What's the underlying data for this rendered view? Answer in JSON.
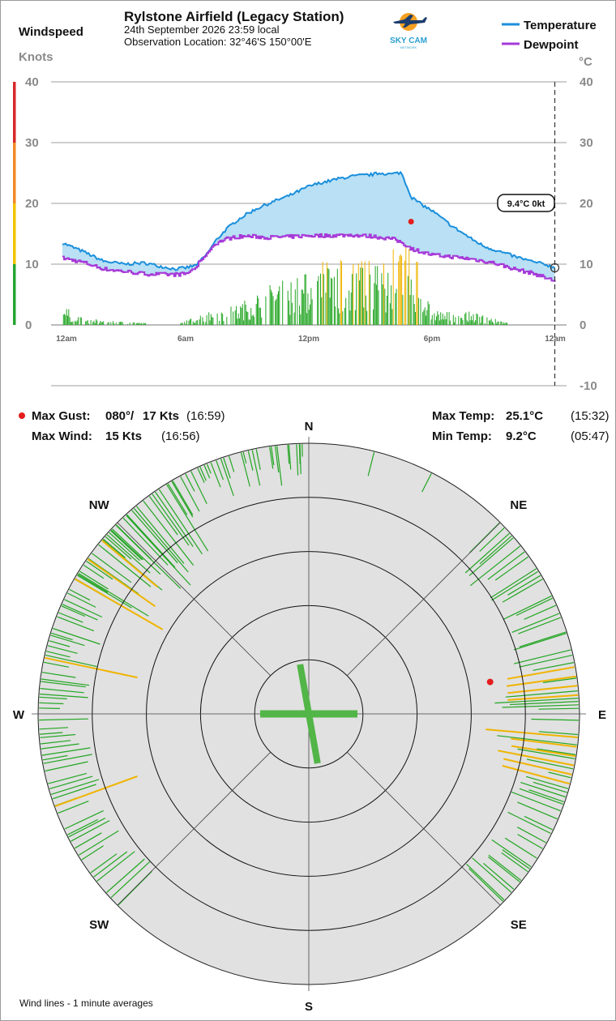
{
  "header": {
    "station_name": "Rylstone Airfield (Legacy Station)",
    "date_line": "24th September 2026  23:59 local",
    "location_line": "Observation Location:  32°46'S 150°00'E",
    "logo_text": "SKY CAM",
    "logo_subtext": "NETWORK"
  },
  "left_axis": {
    "title": "Windspeed",
    "unit": "Knots"
  },
  "right_axis": {
    "unit": "°C"
  },
  "legend": {
    "temperature": "Temperature",
    "dewpoint": "Dewpoint"
  },
  "colors": {
    "temperature": "#1a8fdc",
    "dewpoint": "#a63ad8",
    "fill": "#b9e0f4",
    "wind_green": "#22a522",
    "wind_yellow": "#f0b400",
    "gust_marker": "#e41d1d",
    "scale_red": "#d8282a",
    "scale_orange": "#f08a24",
    "scale_yellow": "#f2c400",
    "scale_green": "#27a534",
    "rose_bg": "#e1e1e1"
  },
  "current_badge": "9.4°C  0kt",
  "chart_data": {
    "type": "line",
    "x_ticks": [
      "12am",
      "6am",
      "12pm",
      "6pm",
      "12am"
    ],
    "x_range_hours": [
      0,
      24
    ],
    "windspeed_axis": {
      "ticks": [
        "0",
        "10",
        "20",
        "30",
        "40"
      ],
      "ylim": [
        0,
        40
      ]
    },
    "temperature_axis": {
      "ticks": [
        "-10",
        "0",
        "10",
        "20",
        "30",
        "40"
      ],
      "ylim": [
        -10,
        40
      ]
    },
    "series": [
      {
        "name": "Temperature",
        "hours": [
          0,
          1,
          2,
          3,
          4,
          5,
          5.5,
          6,
          6.5,
          7,
          7.5,
          8,
          8.5,
          9,
          9.5,
          10,
          10.5,
          11,
          11.5,
          12,
          12.5,
          13,
          13.5,
          14,
          14.5,
          15,
          15.5,
          16,
          16.5,
          17,
          17.5,
          18,
          19,
          20,
          20.5,
          21,
          22,
          22.5,
          23,
          23.5,
          23.98
        ],
        "values": [
          13.5,
          12.1,
          10.5,
          10,
          10.2,
          9.5,
          9.2,
          9.4,
          9.8,
          11.5,
          14,
          15.8,
          17.2,
          18.3,
          19.2,
          19.9,
          20.6,
          21.2,
          22,
          22.8,
          23.3,
          23.7,
          24.1,
          24.4,
          24.6,
          24.7,
          25,
          24.8,
          25.1,
          21,
          19.8,
          18.8,
          16.2,
          14,
          13,
          12.4,
          11.3,
          10.8,
          10.3,
          10,
          9.4
        ]
      },
      {
        "name": "Dewpoint",
        "hours": [
          0,
          1,
          2,
          3,
          4,
          5,
          5.5,
          6,
          6.5,
          7,
          7.5,
          8,
          8.5,
          9,
          10,
          11,
          12,
          13,
          14,
          15,
          16,
          16.5,
          17,
          17.5,
          18,
          19,
          20,
          21,
          22,
          23,
          23.5,
          23.98
        ],
        "values": [
          11,
          10.3,
          9.2,
          8.8,
          8.4,
          8.3,
          8.3,
          8.4,
          9.5,
          12,
          13.5,
          14.2,
          14.5,
          14.6,
          14.4,
          14.5,
          14.7,
          14.7,
          14.8,
          14.6,
          14.2,
          13.6,
          12.5,
          12,
          11.5,
          11.2,
          10.8,
          10.2,
          9.2,
          8.4,
          7.8,
          7.2
        ]
      }
    ],
    "windspeed_profile": {
      "hours": [
        0,
        1,
        5.5,
        7,
        8.5,
        10,
        12,
        14,
        15.5,
        16,
        16.5,
        17,
        17.5,
        18,
        18.5,
        20,
        22,
        24
      ],
      "typical_peak_kts": [
        3,
        1,
        0,
        2,
        3,
        6,
        8,
        10,
        10,
        8,
        11,
        10,
        5,
        3,
        2,
        2,
        0,
        0
      ]
    },
    "stats": {
      "max_gust_label": "Max Gust:",
      "max_gust_dir": "080°/",
      "max_gust_speed": "17 Kts",
      "max_gust_time": "(16:59)",
      "max_gust_hour": 16.98,
      "max_gust_kts": 17,
      "max_wind_label": "Max Wind:",
      "max_wind_speed": "15 Kts",
      "max_wind_time": "(16:56)",
      "max_temp_label": "Max Temp:",
      "max_temp_value": "25.1°C",
      "max_temp_time": "(15:32)",
      "min_temp_label": "Min Temp:",
      "min_temp_value": "9.2°C",
      "min_temp_time": "(05:47)"
    },
    "wind_rose": {
      "compass": [
        "N",
        "NE",
        "E",
        "SE",
        "S",
        "SW",
        "W",
        "NW"
      ],
      "ring_kts": [
        5,
        10,
        15,
        20,
        25
      ],
      "gust_direction_deg": 80,
      "gust_speed_kts": 17,
      "direction_bands": [
        {
          "from_deg": 45,
          "to_deg": 80,
          "lengths_kts": [
            3,
            6
          ]
        },
        {
          "from_deg": 80,
          "to_deg": 100,
          "lengths_kts": [
            3,
            8
          ]
        },
        {
          "from_deg": 100,
          "to_deg": 135,
          "lengths_kts": [
            2,
            5
          ]
        },
        {
          "from_deg": 225,
          "to_deg": 315,
          "lengths_kts": [
            2,
            5
          ]
        },
        {
          "from_deg": 300,
          "to_deg": 330,
          "lengths_kts": [
            3,
            9
          ]
        },
        {
          "from_deg": 330,
          "to_deg": 360,
          "lengths_kts": [
            1,
            4
          ]
        }
      ],
      "yellow_directions_deg": [
        80,
        82,
        84,
        86,
        95,
        97,
        99,
        101,
        103,
        105,
        250,
        282,
        300,
        305,
        310
      ]
    }
  },
  "footer": {
    "note": "Wind lines - 1 minute averages"
  }
}
